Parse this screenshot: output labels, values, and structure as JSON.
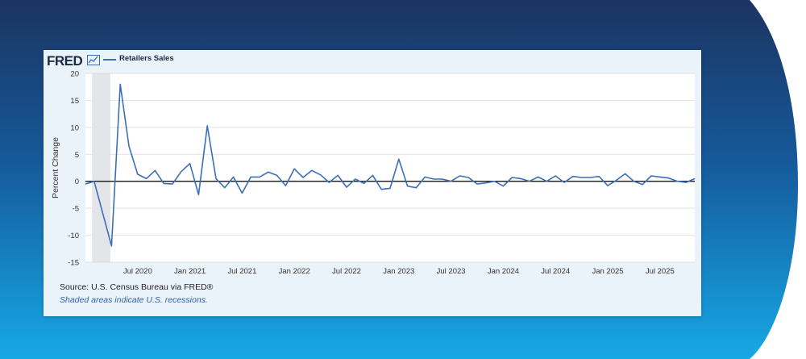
{
  "header": {
    "logo_text": "FRED",
    "legend_label": "Retailers Sales",
    "line_color": "#3a6fb6"
  },
  "footer": {
    "source": "Source: U.S. Census Bureau via FRED®",
    "recession_note": "Shaded areas indicate U.S. recessions."
  },
  "chart_data": {
    "type": "line",
    "title": "",
    "xlabel": "",
    "ylabel": "Percent Change",
    "ylim": [
      -15,
      20
    ],
    "yticks": [
      20,
      15,
      10,
      5,
      0,
      -5,
      -10,
      -15
    ],
    "grid": true,
    "recession": {
      "start": "2020-02",
      "end": "2020-04"
    },
    "xtick_labels": [
      "Jul 2020",
      "Jan 2021",
      "Jul 2021",
      "Jan 2022",
      "Jul 2022",
      "Jan 2023",
      "Jul 2023",
      "Jan 2024",
      "Jul 2024",
      "Jan 2025",
      "Jul 2025"
    ],
    "xtick_dates": [
      "2020-07",
      "2021-01",
      "2021-07",
      "2022-01",
      "2022-07",
      "2023-01",
      "2023-07",
      "2024-01",
      "2024-07",
      "2025-01",
      "2025-07"
    ],
    "series": [
      {
        "name": "Retailers Sales",
        "color": "#3a6fb6",
        "x": [
          "2020-01",
          "2020-02",
          "2020-03",
          "2020-04",
          "2020-05",
          "2020-06",
          "2020-07",
          "2020-08",
          "2020-09",
          "2020-10",
          "2020-11",
          "2020-12",
          "2021-01",
          "2021-02",
          "2021-03",
          "2021-04",
          "2021-05",
          "2021-06",
          "2021-07",
          "2021-08",
          "2021-09",
          "2021-10",
          "2021-11",
          "2021-12",
          "2022-01",
          "2022-02",
          "2022-03",
          "2022-04",
          "2022-05",
          "2022-06",
          "2022-07",
          "2022-08",
          "2022-09",
          "2022-10",
          "2022-11",
          "2022-12",
          "2023-01",
          "2023-02",
          "2023-03",
          "2023-04",
          "2023-05",
          "2023-06",
          "2023-07",
          "2023-08",
          "2023-09",
          "2023-10",
          "2023-11",
          "2023-12",
          "2024-01",
          "2024-02",
          "2024-03",
          "2024-04",
          "2024-05",
          "2024-06",
          "2024-07",
          "2024-08",
          "2024-09",
          "2024-10",
          "2024-11",
          "2024-12",
          "2025-01",
          "2025-02",
          "2025-03",
          "2025-04",
          "2025-05",
          "2025-06",
          "2025-07",
          "2025-08",
          "2025-09",
          "2025-10",
          "2025-11"
        ],
        "values": [
          -0.5,
          0.0,
          -6.0,
          -12.0,
          18.0,
          6.5,
          1.3,
          0.5,
          2.0,
          -0.4,
          -0.5,
          1.8,
          3.3,
          -2.5,
          10.3,
          0.5,
          -1.2,
          0.8,
          -2.2,
          0.8,
          0.8,
          1.7,
          1.1,
          -0.8,
          2.3,
          0.7,
          2.0,
          1.2,
          -0.2,
          1.1,
          -1.1,
          0.4,
          -0.4,
          1.1,
          -1.5,
          -1.3,
          4.1,
          -0.9,
          -1.2,
          0.8,
          0.4,
          0.4,
          0.0,
          1.0,
          0.7,
          -0.5,
          -0.3,
          0.0,
          -0.9,
          0.7,
          0.5,
          0.0,
          0.8,
          0.0,
          1.0,
          -0.2,
          0.9,
          0.7,
          0.7,
          0.9,
          -0.8,
          0.2,
          1.4,
          0.0,
          -0.6,
          1.0,
          0.8,
          0.6,
          0.0,
          -0.2,
          0.5
        ]
      }
    ]
  }
}
